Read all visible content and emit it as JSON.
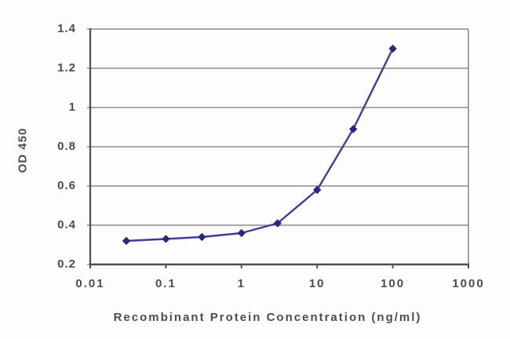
{
  "colors": {
    "line": "#3d3d99",
    "marker": "#28287f",
    "grid": "#8b8b8b",
    "axis": "#4f4f4f",
    "text": "#4b4b55",
    "background": "#fdfdfd"
  },
  "chart_data": {
    "type": "line",
    "xlabel": "Recombinant Protein Concentration (ng/ml)",
    "ylabel": "OD 450",
    "x_scale": "log",
    "x": [
      0.03,
      0.1,
      0.3,
      1,
      3,
      10,
      30,
      100
    ],
    "series": [
      {
        "name": "OD 450",
        "values": [
          0.32,
          0.33,
          0.34,
          0.36,
          0.41,
          0.58,
          0.89,
          1.3
        ],
        "marker": "diamond"
      }
    ],
    "xlim": [
      0.01,
      1000
    ],
    "ylim": [
      0.2,
      1.4
    ],
    "xticks": [
      0.01,
      0.1,
      1,
      10,
      100,
      1000
    ],
    "xtick_labels": [
      "0.01",
      "0.1",
      "1",
      "10",
      "100",
      "1000"
    ],
    "yticks": [
      0.2,
      0.4,
      0.6,
      0.8,
      1,
      1.2,
      1.4
    ],
    "ytick_labels": [
      "0.2",
      "0.4",
      "0.6",
      "0.8",
      "1",
      "1.2",
      "1.4"
    ],
    "grid": "horizontal",
    "legend": "none"
  }
}
